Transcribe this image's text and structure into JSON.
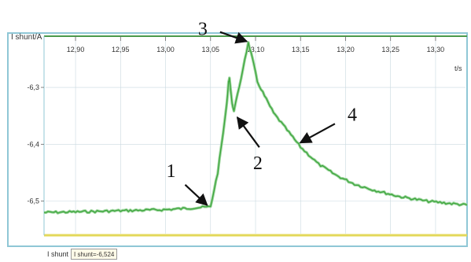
{
  "chart_data": {
    "type": "line",
    "ylabel": "I shunt/A",
    "xlabel": "t/s",
    "xlim": [
      12.865,
      13.335
    ],
    "ylim": [
      -6.56,
      -6.21
    ],
    "x_ticks": [
      "12,90",
      "12,95",
      "13,00",
      "13,05",
      "13,10",
      "13,15",
      "13,20",
      "13,25",
      "13,30"
    ],
    "y_ticks": [
      "-6,3",
      "-6,4",
      "-6,5"
    ],
    "series": [
      {
        "name": "I shunt",
        "points": [
          [
            12.865,
            -6.52
          ],
          [
            12.9,
            -6.519
          ],
          [
            12.95,
            -6.517
          ],
          [
            13.0,
            -6.515
          ],
          [
            13.03,
            -6.512
          ],
          [
            13.05,
            -6.51
          ],
          [
            13.058,
            -6.45
          ],
          [
            13.064,
            -6.38
          ],
          [
            13.068,
            -6.33
          ],
          [
            13.07,
            -6.29
          ],
          [
            13.071,
            -6.283
          ],
          [
            13.074,
            -6.33
          ],
          [
            13.076,
            -6.34
          ],
          [
            13.082,
            -6.3
          ],
          [
            13.088,
            -6.25
          ],
          [
            13.092,
            -6.222
          ],
          [
            13.095,
            -6.24
          ],
          [
            13.098,
            -6.26
          ],
          [
            13.102,
            -6.29
          ],
          [
            13.11,
            -6.315
          ],
          [
            13.12,
            -6.345
          ],
          [
            13.135,
            -6.375
          ],
          [
            13.15,
            -6.405
          ],
          [
            13.17,
            -6.435
          ],
          [
            13.19,
            -6.455
          ],
          [
            13.21,
            -6.47
          ],
          [
            13.23,
            -6.48
          ],
          [
            13.26,
            -6.492
          ],
          [
            13.29,
            -6.5
          ],
          [
            13.335,
            -6.507
          ]
        ]
      }
    ],
    "annotations": [
      {
        "label": "1",
        "x": 13.048,
        "y": -6.51
      },
      {
        "label": "2",
        "x": 13.078,
        "y": -6.35
      },
      {
        "label": "3",
        "x": 13.092,
        "y": -6.222
      },
      {
        "label": "4",
        "x": 13.148,
        "y": -6.4
      }
    ],
    "colors": {
      "series": "#3fa63f",
      "frame": "#8fc7d6",
      "top_band": "#4b9a4b",
      "bottom_band": "#e3d85a",
      "grid": "#c9d9e0"
    },
    "grid": true
  },
  "legend": {
    "series_name": "I shunt",
    "readout": "I shunt=-6,524"
  }
}
